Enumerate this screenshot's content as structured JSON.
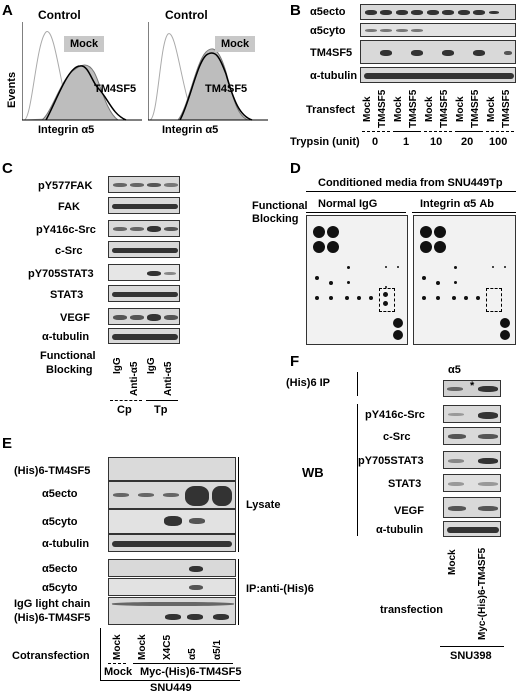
{
  "panelA": {
    "letter": "A",
    "control1": "Control",
    "control2": "Control",
    "mock1": "Mock",
    "mock2": "Mock",
    "tm1": "TM4SF5",
    "tm2": "TM4SF5",
    "ylabel": "Events",
    "xlabel1": "Integrin α5",
    "xlabel2": "Integrin α5"
  },
  "panelB": {
    "letter": "B",
    "rows": [
      "α5ecto",
      "α5cyto",
      "TM4SF5",
      "α-tubulin"
    ],
    "transfect": "Transfect",
    "lanes": [
      "Mock",
      "TM4SF5",
      "Mock",
      "TM4SF5",
      "Mock",
      "TM4SF5",
      "Mock",
      "TM4SF5",
      "Mock",
      "TM4SF5"
    ],
    "trypsin_label": "Trypsin (unit)",
    "trypsin_values": [
      "0",
      "1",
      "10",
      "20",
      "100"
    ]
  },
  "panelC": {
    "letter": "C",
    "rows": [
      "pY577FAK",
      "FAK",
      "pY416c-Src",
      "c-Src",
      "pY705STAT3",
      "STAT3",
      "VEGF",
      "α-tubulin"
    ],
    "fb_label1": "Functional",
    "fb_label2": "Blocking",
    "lanes": [
      "IgG",
      "Anti-α5",
      "IgG",
      "Anti-α5"
    ],
    "groups": [
      "Cp",
      "Tp"
    ]
  },
  "panelD": {
    "letter": "D",
    "title": "Conditioned media from SNU449Tp",
    "fb_label1": "Functional",
    "fb_label2": "Blocking",
    "col1": "Normal IgG",
    "col2": "Integrin α5 Ab"
  },
  "panelE": {
    "letter": "E",
    "lysate_rows": [
      "(His)6-TM4SF5",
      "α5ecto",
      "α5cyto",
      "α-tubulin"
    ],
    "lysate_label": "Lysate",
    "ip_rows": [
      "α5ecto",
      "α5cyto",
      "IgG light chain",
      "(His)6-TM4SF5"
    ],
    "ip_label": "IP:anti-(His)6",
    "cotrans_label": "Cotransfection",
    "lanes": [
      "Mock",
      "Mock",
      "X4C5",
      "α5",
      "α5/1"
    ],
    "group_mock": "Mock",
    "group_myc": "Myc-(His)6-TM4SF5",
    "cell": "SNU449"
  },
  "panelF": {
    "letter": "F",
    "ip_label": "(His)6 IP",
    "ip_row": "α5",
    "star": "*",
    "wb_label": "WB",
    "wb_rows": [
      "pY416c-Src",
      "c-Src",
      "pY705STAT3",
      "STAT3",
      "VEGF",
      "α-tubulin"
    ],
    "transfection_label": "transfection",
    "lanes": [
      "Mock",
      "Myc-(His)6-TM4SF5"
    ],
    "cell": "SNU398"
  }
}
